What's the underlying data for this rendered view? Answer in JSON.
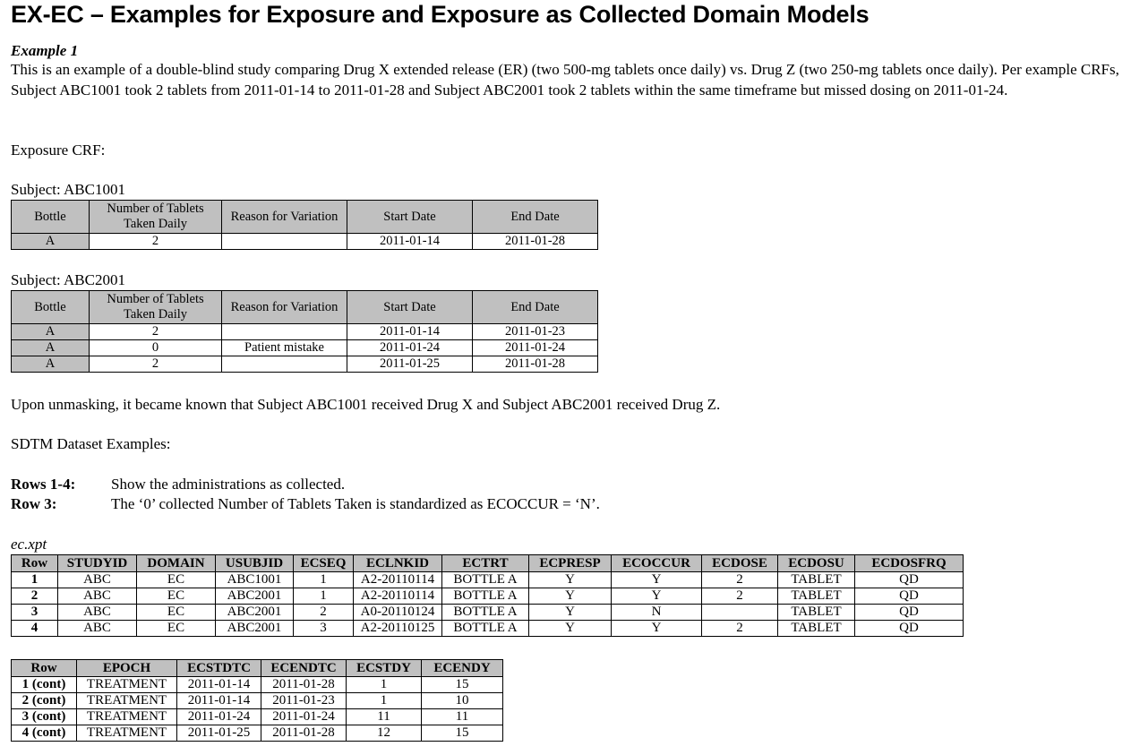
{
  "page_title": "EX-EC – Examples for Exposure and Exposure as Collected Domain Models",
  "example": {
    "title": "Example 1",
    "intro": "This is an example of a double-blind study comparing Drug X extended release (ER) (two 500-mg tablets once daily) vs. Drug Z (two 250-mg tablets once daily). Per example CRFs, Subject ABC1001 took 2 tablets from 2011-01-14 to 2011-01-28 and Subject ABC2001 took 2 tablets within the same timeframe but missed dosing on 2011-01-24.",
    "crf_heading": "Exposure CRF:"
  },
  "crf_headers": [
    "Bottle",
    "Number of Tablets Taken Daily",
    "Reason for Variation",
    "Start Date",
    "End Date"
  ],
  "subjects": [
    {
      "label": "Subject: ABC1001",
      "rows": [
        [
          "A",
          "2",
          "",
          "2011-01-14",
          "2011-01-28"
        ]
      ]
    },
    {
      "label": "Subject: ABC2001",
      "rows": [
        [
          "A",
          "2",
          "",
          "2011-01-14",
          "2011-01-23"
        ],
        [
          "A",
          "0",
          "Patient mistake",
          "2011-01-24",
          "2011-01-24"
        ],
        [
          "A",
          "2",
          "",
          "2011-01-25",
          "2011-01-28"
        ]
      ]
    }
  ],
  "unmasking_text": "Upon unmasking, it became known that Subject ABC1001 received Drug X and Subject ABC2001 received Drug Z.",
  "sdtm_heading": "SDTM Dataset Examples:",
  "notes": [
    {
      "label": "Rows 1-4:",
      "text": "Show the administrations as collected."
    },
    {
      "label": "Row 3:",
      "text": "The ‘0’ collected Number of Tablets Taken is standardized as ECOCCUR = ‘N’."
    }
  ],
  "dataset_name": "ec.xpt",
  "ec_table1": {
    "headers": [
      "Row",
      "STUDYID",
      "DOMAIN",
      "USUBJID",
      "ECSEQ",
      "ECLNKID",
      "ECTRT",
      "ECPRESP",
      "ECOCCUR",
      "ECDOSE",
      "ECDOSU",
      "ECDOSFRQ"
    ],
    "rows": [
      [
        "1",
        "ABC",
        "EC",
        "ABC1001",
        "1",
        "A2-20110114",
        "BOTTLE A",
        "Y",
        "Y",
        "2",
        "TABLET",
        "QD"
      ],
      [
        "2",
        "ABC",
        "EC",
        "ABC2001",
        "1",
        "A2-20110114",
        "BOTTLE A",
        "Y",
        "Y",
        "2",
        "TABLET",
        "QD"
      ],
      [
        "3",
        "ABC",
        "EC",
        "ABC2001",
        "2",
        "A0-20110124",
        "BOTTLE A",
        "Y",
        "N",
        "",
        "TABLET",
        "QD"
      ],
      [
        "4",
        "ABC",
        "EC",
        "ABC2001",
        "3",
        "A2-20110125",
        "BOTTLE A",
        "Y",
        "Y",
        "2",
        "TABLET",
        "QD"
      ]
    ]
  },
  "ec_table2": {
    "headers": [
      "Row",
      "EPOCH",
      "ECSTDTC",
      "ECENDTC",
      "ECSTDY",
      "ECENDY"
    ],
    "rows": [
      [
        "1 (cont)",
        "TREATMENT",
        "2011-01-14",
        "2011-01-28",
        "1",
        "15"
      ],
      [
        "2 (cont)",
        "TREATMENT",
        "2011-01-14",
        "2011-01-23",
        "1",
        "10"
      ],
      [
        "3 (cont)",
        "TREATMENT",
        "2011-01-24",
        "2011-01-24",
        "11",
        "11"
      ],
      [
        "4 (cont)",
        "TREATMENT",
        "2011-01-25",
        "2011-01-28",
        "12",
        "15"
      ]
    ]
  }
}
